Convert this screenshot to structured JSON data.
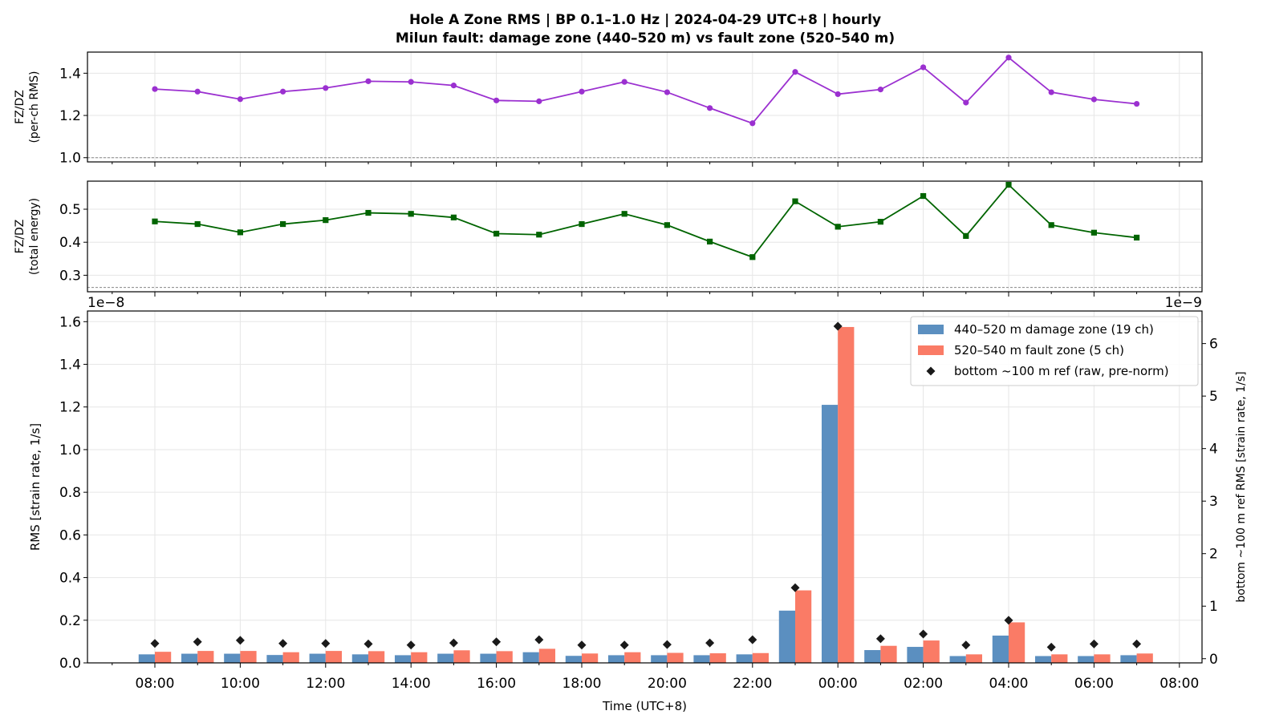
{
  "figure": {
    "title_line1": "Hole A Zone RMS  |  BP 0.1–1.0 Hz  |  2024-04-29 UTC+8  |  hourly",
    "title_line2": "Milun fault: damage zone (440–520 m) vs fault zone (520–540 m)"
  },
  "chart_data": [
    {
      "type": "line",
      "ylabel_line1": "FZ/DZ",
      "ylabel_line2": "(per-ch RMS)",
      "ylim": [
        0.98,
        1.5
      ],
      "yticks": [
        1.0,
        1.2,
        1.4
      ],
      "ytick_labels": [
        "1.0",
        "1.2",
        "1.4"
      ],
      "reference_line": 1.0,
      "color": "#9b30d0",
      "marker": "circle",
      "grid": true,
      "x": [
        "08:00",
        "09:00",
        "10:00",
        "11:00",
        "12:00",
        "13:00",
        "14:00",
        "15:00",
        "16:00",
        "17:00",
        "18:00",
        "19:00",
        "20:00",
        "21:00",
        "22:00",
        "23:00",
        "00:00",
        "01:00",
        "02:00",
        "03:00",
        "04:00",
        "05:00",
        "06:00",
        "07:00"
      ],
      "values": [
        1.325,
        1.313,
        1.277,
        1.313,
        1.33,
        1.362,
        1.359,
        1.342,
        1.271,
        1.267,
        1.313,
        1.359,
        1.31,
        1.235,
        1.163,
        1.406,
        1.301,
        1.323,
        1.428,
        1.261,
        1.474,
        1.31,
        1.276,
        1.255
      ]
    },
    {
      "type": "line",
      "ylabel_line1": "FZ/DZ",
      "ylabel_line2": "(total energy)",
      "ylim": [
        0.25,
        0.585
      ],
      "yticks": [
        0.3,
        0.4,
        0.5
      ],
      "ytick_labels": [
        "0.3",
        "0.4",
        "0.5"
      ],
      "reference_line": 0.263,
      "color": "#006400",
      "marker": "square",
      "grid": true,
      "x": [
        "08:00",
        "09:00",
        "10:00",
        "11:00",
        "12:00",
        "13:00",
        "14:00",
        "15:00",
        "16:00",
        "17:00",
        "18:00",
        "19:00",
        "20:00",
        "21:00",
        "22:00",
        "23:00",
        "00:00",
        "01:00",
        "02:00",
        "03:00",
        "04:00",
        "05:00",
        "06:00",
        "07:00"
      ],
      "values": [
        0.463,
        0.455,
        0.43,
        0.455,
        0.467,
        0.489,
        0.486,
        0.475,
        0.426,
        0.423,
        0.455,
        0.486,
        0.452,
        0.402,
        0.355,
        0.524,
        0.447,
        0.462,
        0.54,
        0.419,
        0.574,
        0.452,
        0.429,
        0.414
      ]
    },
    {
      "type": "bar",
      "xlabel": "Time (UTC+8)",
      "ylabel": "RMS  [strain rate, 1/s]",
      "ylabel_right": "bottom ~100 m ref RMS  [strain rate, 1/s]",
      "y_offset_text": "1e−8",
      "y2_offset_text": "1e−9",
      "ylim": [
        0,
        1.65
      ],
      "y2lim": [
        -0.08,
        6.62
      ],
      "yticks": [
        "0.0",
        "0.2",
        "0.4",
        "0.6",
        "0.8",
        "1.0",
        "1.2",
        "1.4",
        "1.6"
      ],
      "y2ticks": [
        "0",
        "1",
        "2",
        "3",
        "4",
        "5",
        "6"
      ],
      "xticks": [
        "08:00",
        "10:00",
        "12:00",
        "14:00",
        "16:00",
        "18:00",
        "20:00",
        "22:00",
        "00:00",
        "02:00",
        "04:00",
        "06:00",
        "08:00"
      ],
      "grid": true,
      "legend_position": "upper-right",
      "categories": [
        "08:00",
        "09:00",
        "10:00",
        "11:00",
        "12:00",
        "13:00",
        "14:00",
        "15:00",
        "16:00",
        "17:00",
        "18:00",
        "19:00",
        "20:00",
        "21:00",
        "22:00",
        "23:00",
        "00:00",
        "01:00",
        "02:00",
        "03:00",
        "04:00",
        "05:00",
        "06:00",
        "07:00"
      ],
      "series": [
        {
          "name": "440–520 m  damage zone (19 ch)",
          "color": "#5b8fc0",
          "values": [
            0.04,
            0.043,
            0.043,
            0.037,
            0.043,
            0.04,
            0.036,
            0.043,
            0.043,
            0.05,
            0.033,
            0.036,
            0.036,
            0.036,
            0.04,
            0.245,
            1.21,
            0.06,
            0.075,
            0.032,
            0.128,
            0.032,
            0.032,
            0.036
          ]
        },
        {
          "name": "520–540 m  fault zone (5 ch)",
          "color": "#fa7b66",
          "values": [
            0.052,
            0.056,
            0.056,
            0.05,
            0.056,
            0.055,
            0.05,
            0.059,
            0.055,
            0.066,
            0.044,
            0.05,
            0.047,
            0.045,
            0.046,
            0.34,
            1.575,
            0.08,
            0.105,
            0.04,
            0.19,
            0.04,
            0.04,
            0.044
          ]
        },
        {
          "name": "bottom ~100 m ref (raw, pre-norm)",
          "color": "#1a1a1a",
          "marker": "diamond",
          "axis": "right",
          "values": [
            0.29,
            0.32,
            0.35,
            0.29,
            0.29,
            0.28,
            0.26,
            0.3,
            0.32,
            0.36,
            0.26,
            0.26,
            0.27,
            0.3,
            0.36,
            1.35,
            6.33,
            0.38,
            0.47,
            0.26,
            0.73,
            0.22,
            0.28,
            0.28
          ]
        }
      ]
    }
  ]
}
